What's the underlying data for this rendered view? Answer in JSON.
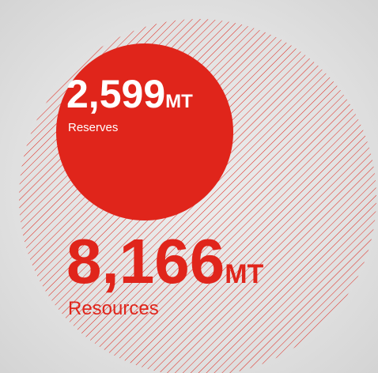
{
  "reserves": {
    "value": "2,599",
    "unit": "MT",
    "label": "Reserves"
  },
  "resources": {
    "value": "8,166",
    "unit": "MT",
    "label": "Resources"
  }
}
